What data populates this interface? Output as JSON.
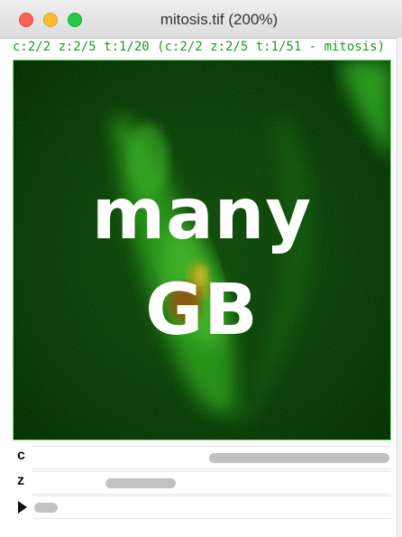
{
  "window": {
    "title": "mitosis.tif (200%)",
    "info_line": "c:2/2 z:2/5 t:1/20 (c:2/2 z:2/5 t:1/51 - mitosis)"
  },
  "image": {
    "overlay_lines": [
      "many",
      "GB"
    ]
  },
  "sliders": {
    "c": {
      "label": "c",
      "position_fraction": 1.0
    },
    "z": {
      "label": "z",
      "position_fraction": 0.25
    },
    "t": {
      "label": "play",
      "position_fraction": 0.0
    }
  },
  "colors": {
    "info_text": "#1a9a1a",
    "image_border": "#7ad87a",
    "thumb": "#c2c2c2"
  }
}
